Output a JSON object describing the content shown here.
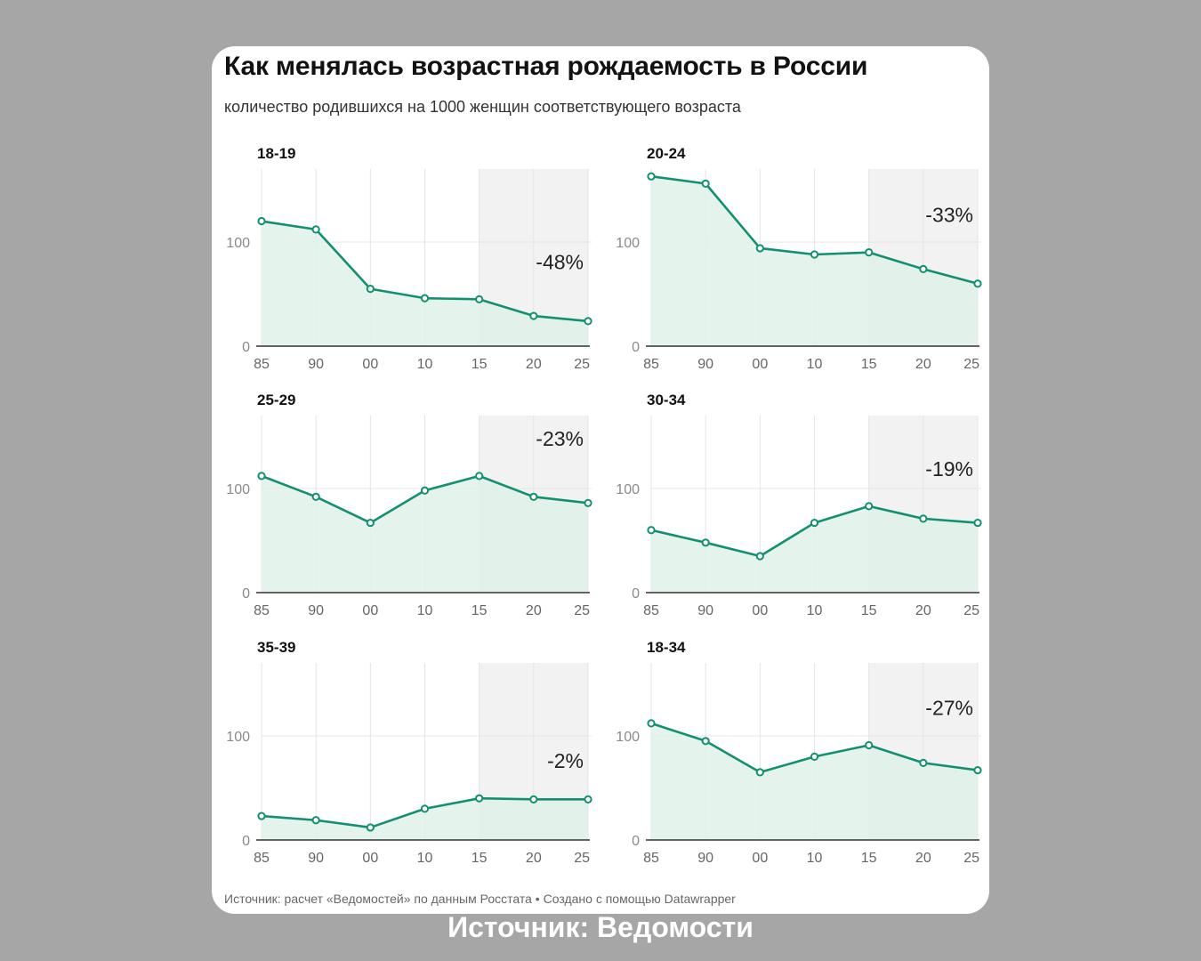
{
  "title": "Как менялась возрастная рождаемость в России",
  "subtitle": "количество родившихся на 1000 женщин соответствующего возраста",
  "footer": "Источник: расчет «Ведомостей» по данным Росстата • Создано с помощью Datawrapper",
  "caption": "Источник: Ведомости",
  "colors": {
    "line": "#13906f",
    "area": "#dff2ea",
    "shade": "#f2f2f2"
  },
  "chart_data": [
    {
      "type": "area",
      "title": "18-19",
      "categories": [
        "85",
        "90",
        "00",
        "10",
        "15",
        "20",
        "25"
      ],
      "values": [
        120,
        112,
        55,
        46,
        45,
        29,
        24
      ],
      "change_label": "-48%",
      "yticks": [
        0,
        100
      ],
      "ylim": [
        0,
        170
      ],
      "highlight_from": "15"
    },
    {
      "type": "area",
      "title": "20-24",
      "categories": [
        "85",
        "90",
        "00",
        "10",
        "15",
        "20",
        "25"
      ],
      "values": [
        163,
        156,
        94,
        88,
        90,
        74,
        60
      ],
      "change_label": "-33%",
      "yticks": [
        0,
        100
      ],
      "ylim": [
        0,
        170
      ],
      "highlight_from": "15"
    },
    {
      "type": "area",
      "title": "25-29",
      "categories": [
        "85",
        "90",
        "00",
        "10",
        "15",
        "20",
        "25"
      ],
      "values": [
        112,
        92,
        67,
        98,
        112,
        92,
        86
      ],
      "change_label": "-23%",
      "yticks": [
        0,
        100
      ],
      "ylim": [
        0,
        170
      ],
      "highlight_from": "15"
    },
    {
      "type": "area",
      "title": "30-34",
      "categories": [
        "85",
        "90",
        "00",
        "10",
        "15",
        "20",
        "25"
      ],
      "values": [
        60,
        48,
        35,
        67,
        83,
        71,
        67
      ],
      "change_label": "-19%",
      "yticks": [
        0,
        100
      ],
      "ylim": [
        0,
        170
      ],
      "highlight_from": "15"
    },
    {
      "type": "area",
      "title": "35-39",
      "categories": [
        "85",
        "90",
        "00",
        "10",
        "15",
        "20",
        "25"
      ],
      "values": [
        23,
        19,
        12,
        30,
        40,
        39,
        39
      ],
      "change_label": "-2%",
      "yticks": [
        0,
        100
      ],
      "ylim": [
        0,
        170
      ],
      "highlight_from": "15"
    },
    {
      "type": "area",
      "title": "18-34",
      "categories": [
        "85",
        "90",
        "00",
        "10",
        "15",
        "20",
        "25"
      ],
      "values": [
        112,
        95,
        65,
        80,
        91,
        74,
        67
      ],
      "change_label": "-27%",
      "yticks": [
        0,
        100
      ],
      "ylim": [
        0,
        170
      ],
      "highlight_from": "15"
    }
  ]
}
